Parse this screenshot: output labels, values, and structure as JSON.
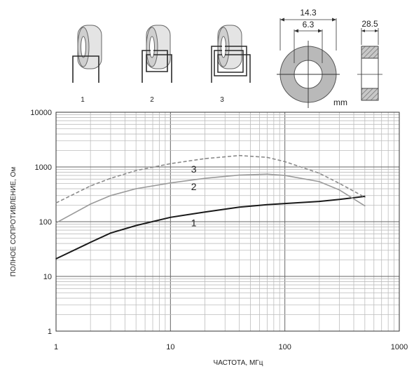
{
  "diagrams": {
    "turn_labels": [
      "1",
      "2",
      "3"
    ],
    "dimensions": {
      "outer_diameter": "14.3",
      "inner_diameter": "6.3",
      "thickness": "28.5",
      "unit": "mm"
    }
  },
  "chart_data": {
    "type": "line",
    "xlabel": "ЧАСТОТА, МГц",
    "ylabel": "ПОЛНОЕ СОПРОТИВЛЕНИЕ, Ом",
    "x_scale": "log",
    "y_scale": "log",
    "xlim": [
      1,
      1000
    ],
    "ylim": [
      1,
      10000
    ],
    "x_ticks": [
      "1",
      "10",
      "100",
      "1000"
    ],
    "y_ticks": [
      "1",
      "10",
      "100",
      "1000",
      "10000"
    ],
    "grid": true,
    "series": [
      {
        "name": "1",
        "style": "solid",
        "color": "#1a1a1a",
        "points": [
          [
            1,
            21
          ],
          [
            2,
            42
          ],
          [
            3,
            62
          ],
          [
            5,
            85
          ],
          [
            10,
            120
          ],
          [
            20,
            150
          ],
          [
            40,
            185
          ],
          [
            70,
            205
          ],
          [
            100,
            215
          ],
          [
            200,
            235
          ],
          [
            300,
            255
          ],
          [
            500,
            290
          ]
        ]
      },
      {
        "name": "2",
        "style": "solid",
        "color": "#9a9a9a",
        "points": [
          [
            1,
            95
          ],
          [
            2,
            210
          ],
          [
            3,
            300
          ],
          [
            5,
            400
          ],
          [
            10,
            510
          ],
          [
            20,
            620
          ],
          [
            40,
            710
          ],
          [
            70,
            740
          ],
          [
            100,
            700
          ],
          [
            200,
            540
          ],
          [
            300,
            380
          ],
          [
            500,
            195
          ]
        ]
      },
      {
        "name": "3",
        "style": "dashed",
        "color": "#8a8a8a",
        "points": [
          [
            1,
            220
          ],
          [
            2,
            450
          ],
          [
            3,
            620
          ],
          [
            5,
            860
          ],
          [
            10,
            1150
          ],
          [
            20,
            1420
          ],
          [
            40,
            1620
          ],
          [
            70,
            1500
          ],
          [
            100,
            1250
          ],
          [
            200,
            770
          ],
          [
            300,
            500
          ],
          [
            500,
            280
          ]
        ]
      }
    ]
  }
}
